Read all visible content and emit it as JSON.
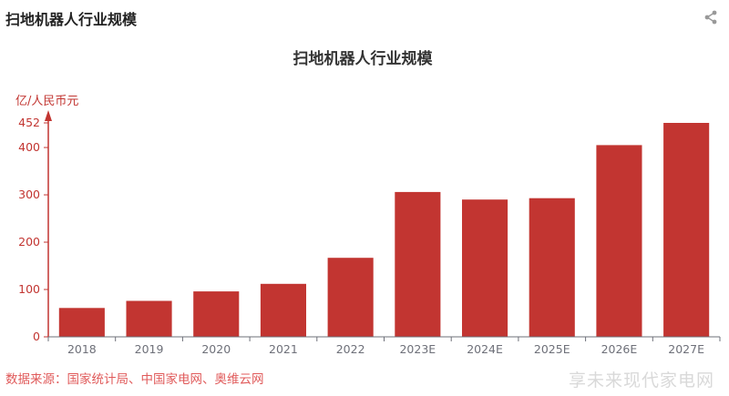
{
  "header": {
    "title": "扫地机器人行业规模",
    "share_icon": "share-icon"
  },
  "chart_data": {
    "type": "bar",
    "title": "扫地机器人行业规模",
    "ylabel": "亿/人民币元",
    "xlabel": "",
    "categories": [
      "2018",
      "2019",
      "2020",
      "2021",
      "2022",
      "2023E",
      "2024E",
      "2025E",
      "2026E",
      "2027E"
    ],
    "values": [
      61,
      76,
      96,
      112,
      167,
      306,
      290,
      293,
      405,
      452
    ],
    "ylim": [
      0,
      452
    ],
    "yticks": [
      0,
      100,
      200,
      300,
      400,
      452
    ],
    "color": "#c23531",
    "axis_color": "#c23531",
    "grid": false,
    "legend": "none"
  },
  "footer": {
    "source": "数据来源：国家统计局、中国家电网、奥维云网",
    "watermark": "享未来现代家电网"
  }
}
